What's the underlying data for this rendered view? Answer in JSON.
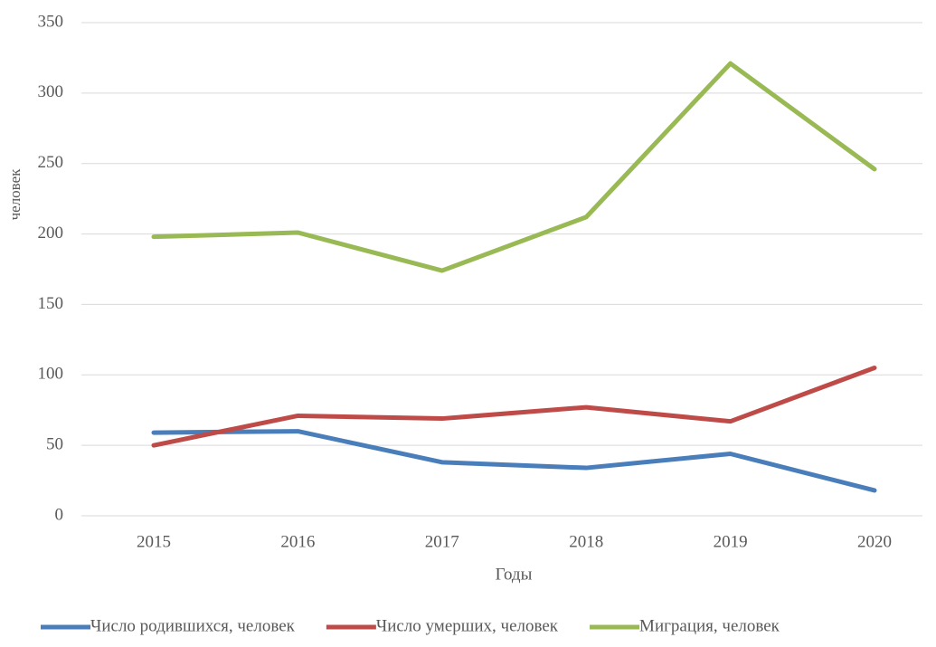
{
  "chart_data": {
    "type": "line",
    "x_label": "Годы",
    "y_label": "человек",
    "categories": [
      "2015",
      "2016",
      "2017",
      "2018",
      "2019",
      "2020"
    ],
    "series": [
      {
        "name": "Число родившихся, человек",
        "color": "#4a7ebb",
        "values": [
          59,
          60,
          38,
          34,
          44,
          18
        ]
      },
      {
        "name": "Число умерших, человек",
        "color": "#be4b48",
        "values": [
          50,
          71,
          69,
          77,
          67,
          105
        ]
      },
      {
        "name": "Миграция, человек",
        "color": "#98b954",
        "values": [
          198,
          201,
          174,
          212,
          321,
          246
        ]
      }
    ],
    "ylim": [
      0,
      350
    ],
    "yticks": [
      0,
      50,
      100,
      150,
      200,
      250,
      300,
      350
    ],
    "grid": true,
    "legend": "bottom"
  }
}
